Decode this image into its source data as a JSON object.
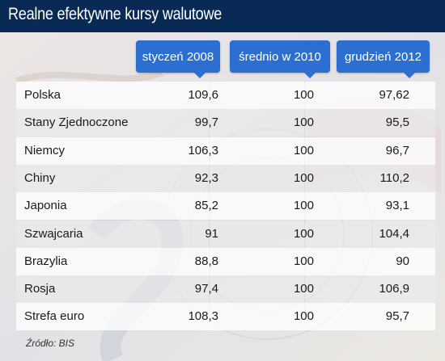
{
  "title": "Realne efektywne kursy walutowe",
  "columns": [
    "styczeń 2008",
    "średnio w 2010",
    "grudzień 2012"
  ],
  "source": "Źródło: BIS",
  "chart_data": {
    "type": "table",
    "title": "Realne efektywne kursy walutowe",
    "columns": [
      "styczeń 2008",
      "średnio w 2010",
      "grudzień 2012"
    ],
    "rows": [
      {
        "label": "Polska",
        "values": [
          "109,6",
          "100",
          "97,62"
        ]
      },
      {
        "label": "Stany Zjednoczone",
        "values": [
          "99,7",
          "100",
          "95,5"
        ]
      },
      {
        "label": "Niemcy",
        "values": [
          "106,3",
          "100",
          "96,7"
        ]
      },
      {
        "label": "Chiny",
        "values": [
          "92,3",
          "100",
          "110,2"
        ]
      },
      {
        "label": "Japonia",
        "values": [
          "85,2",
          "100",
          "93,1"
        ]
      },
      {
        "label": "Szwajcaria",
        "values": [
          "91",
          "100",
          "104,4"
        ]
      },
      {
        "label": "Brazylia",
        "values": [
          "88,8",
          "100",
          "90"
        ]
      },
      {
        "label": "Rosja",
        "values": [
          "97,4",
          "100",
          "106,9"
        ]
      },
      {
        "label": "Strefa euro",
        "values": [
          "108,3",
          "100",
          "95,7"
        ]
      }
    ]
  },
  "colors": {
    "title_bar": "#0a2a56",
    "header": "#2d6fd0",
    "text": "#1a1a1a"
  }
}
